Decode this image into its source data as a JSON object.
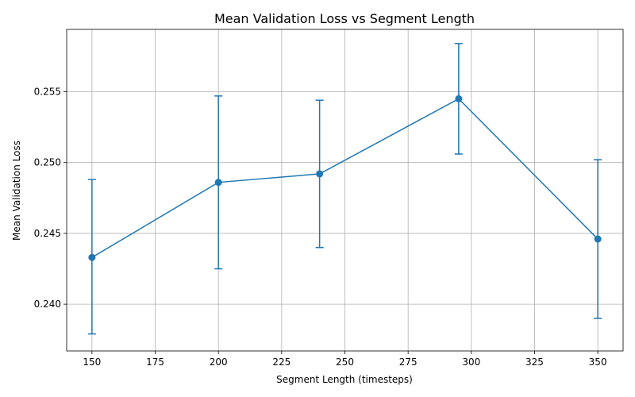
{
  "chart_data": {
    "type": "line",
    "title": "Mean Validation Loss vs Segment Length",
    "xlabel": "Segment Length (timesteps)",
    "ylabel": "Mean Validation Loss",
    "xlim": [
      140,
      360
    ],
    "ylim": [
      0.2367,
      0.2594
    ],
    "xticks": [
      150,
      175,
      200,
      225,
      250,
      275,
      300,
      325,
      350
    ],
    "xtick_labels": [
      "150",
      "175",
      "200",
      "225",
      "250",
      "275",
      "300",
      "325",
      "350"
    ],
    "yticks": [
      0.24,
      0.245,
      0.25,
      0.255
    ],
    "ytick_labels": [
      "0.240",
      "0.245",
      "0.250",
      "0.255"
    ],
    "grid": true,
    "series": [
      {
        "name": "Mean Validation Loss",
        "color": "#1f77b4",
        "x": [
          150,
          200,
          240,
          295,
          350
        ],
        "y": [
          0.2433,
          0.2486,
          0.2492,
          0.2545,
          0.2446
        ],
        "yerr_lower": [
          0.2379,
          0.2425,
          0.244,
          0.2506,
          0.239
        ],
        "yerr_upper": [
          0.2488,
          0.2547,
          0.2544,
          0.2584,
          0.2502
        ]
      }
    ]
  }
}
